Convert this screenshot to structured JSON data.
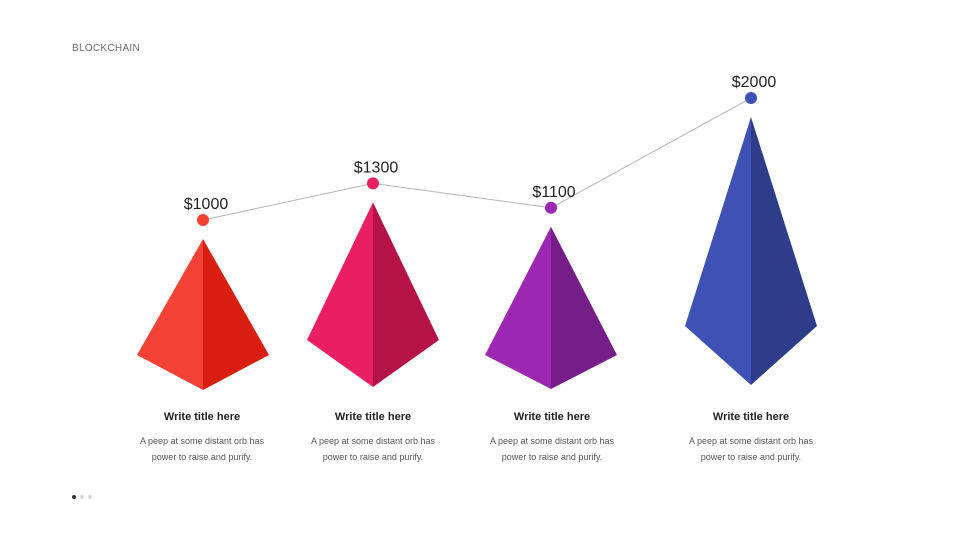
{
  "header": {
    "label": "BLOCKCHAIN"
  },
  "chart_data": {
    "type": "line",
    "categories": [
      "Write title here",
      "Write title here",
      "Write title here",
      "Write title here"
    ],
    "values": [
      1000,
      1300,
      1100,
      2000
    ],
    "value_labels": [
      "$1000",
      "$1300",
      "$1100",
      "$2000"
    ],
    "colors": [
      "#f44336",
      "#e91e63",
      "#9c27b0",
      "#3f51b5"
    ],
    "shade_colors": [
      "#d81f12",
      "#b51348",
      "#751e89",
      "#2e3d8a"
    ],
    "markers": "pyramids below connected dots"
  },
  "items": [
    {
      "title": "Write title here",
      "desc_line1": "A peep at some distant orb has",
      "desc_line2": "power to raise and purify."
    },
    {
      "title": "Write title here",
      "desc_line1": "A peep at some distant orb has",
      "desc_line2": "power to raise and purify."
    },
    {
      "title": "Write title here",
      "desc_line1": "A peep at some distant orb has",
      "desc_line2": "power to raise and purify."
    },
    {
      "title": "Write title here",
      "desc_line1": "A peep at some distant orb has",
      "desc_line2": "power to raise and purify."
    }
  ],
  "pagination": {
    "count": 3,
    "active": 0
  }
}
